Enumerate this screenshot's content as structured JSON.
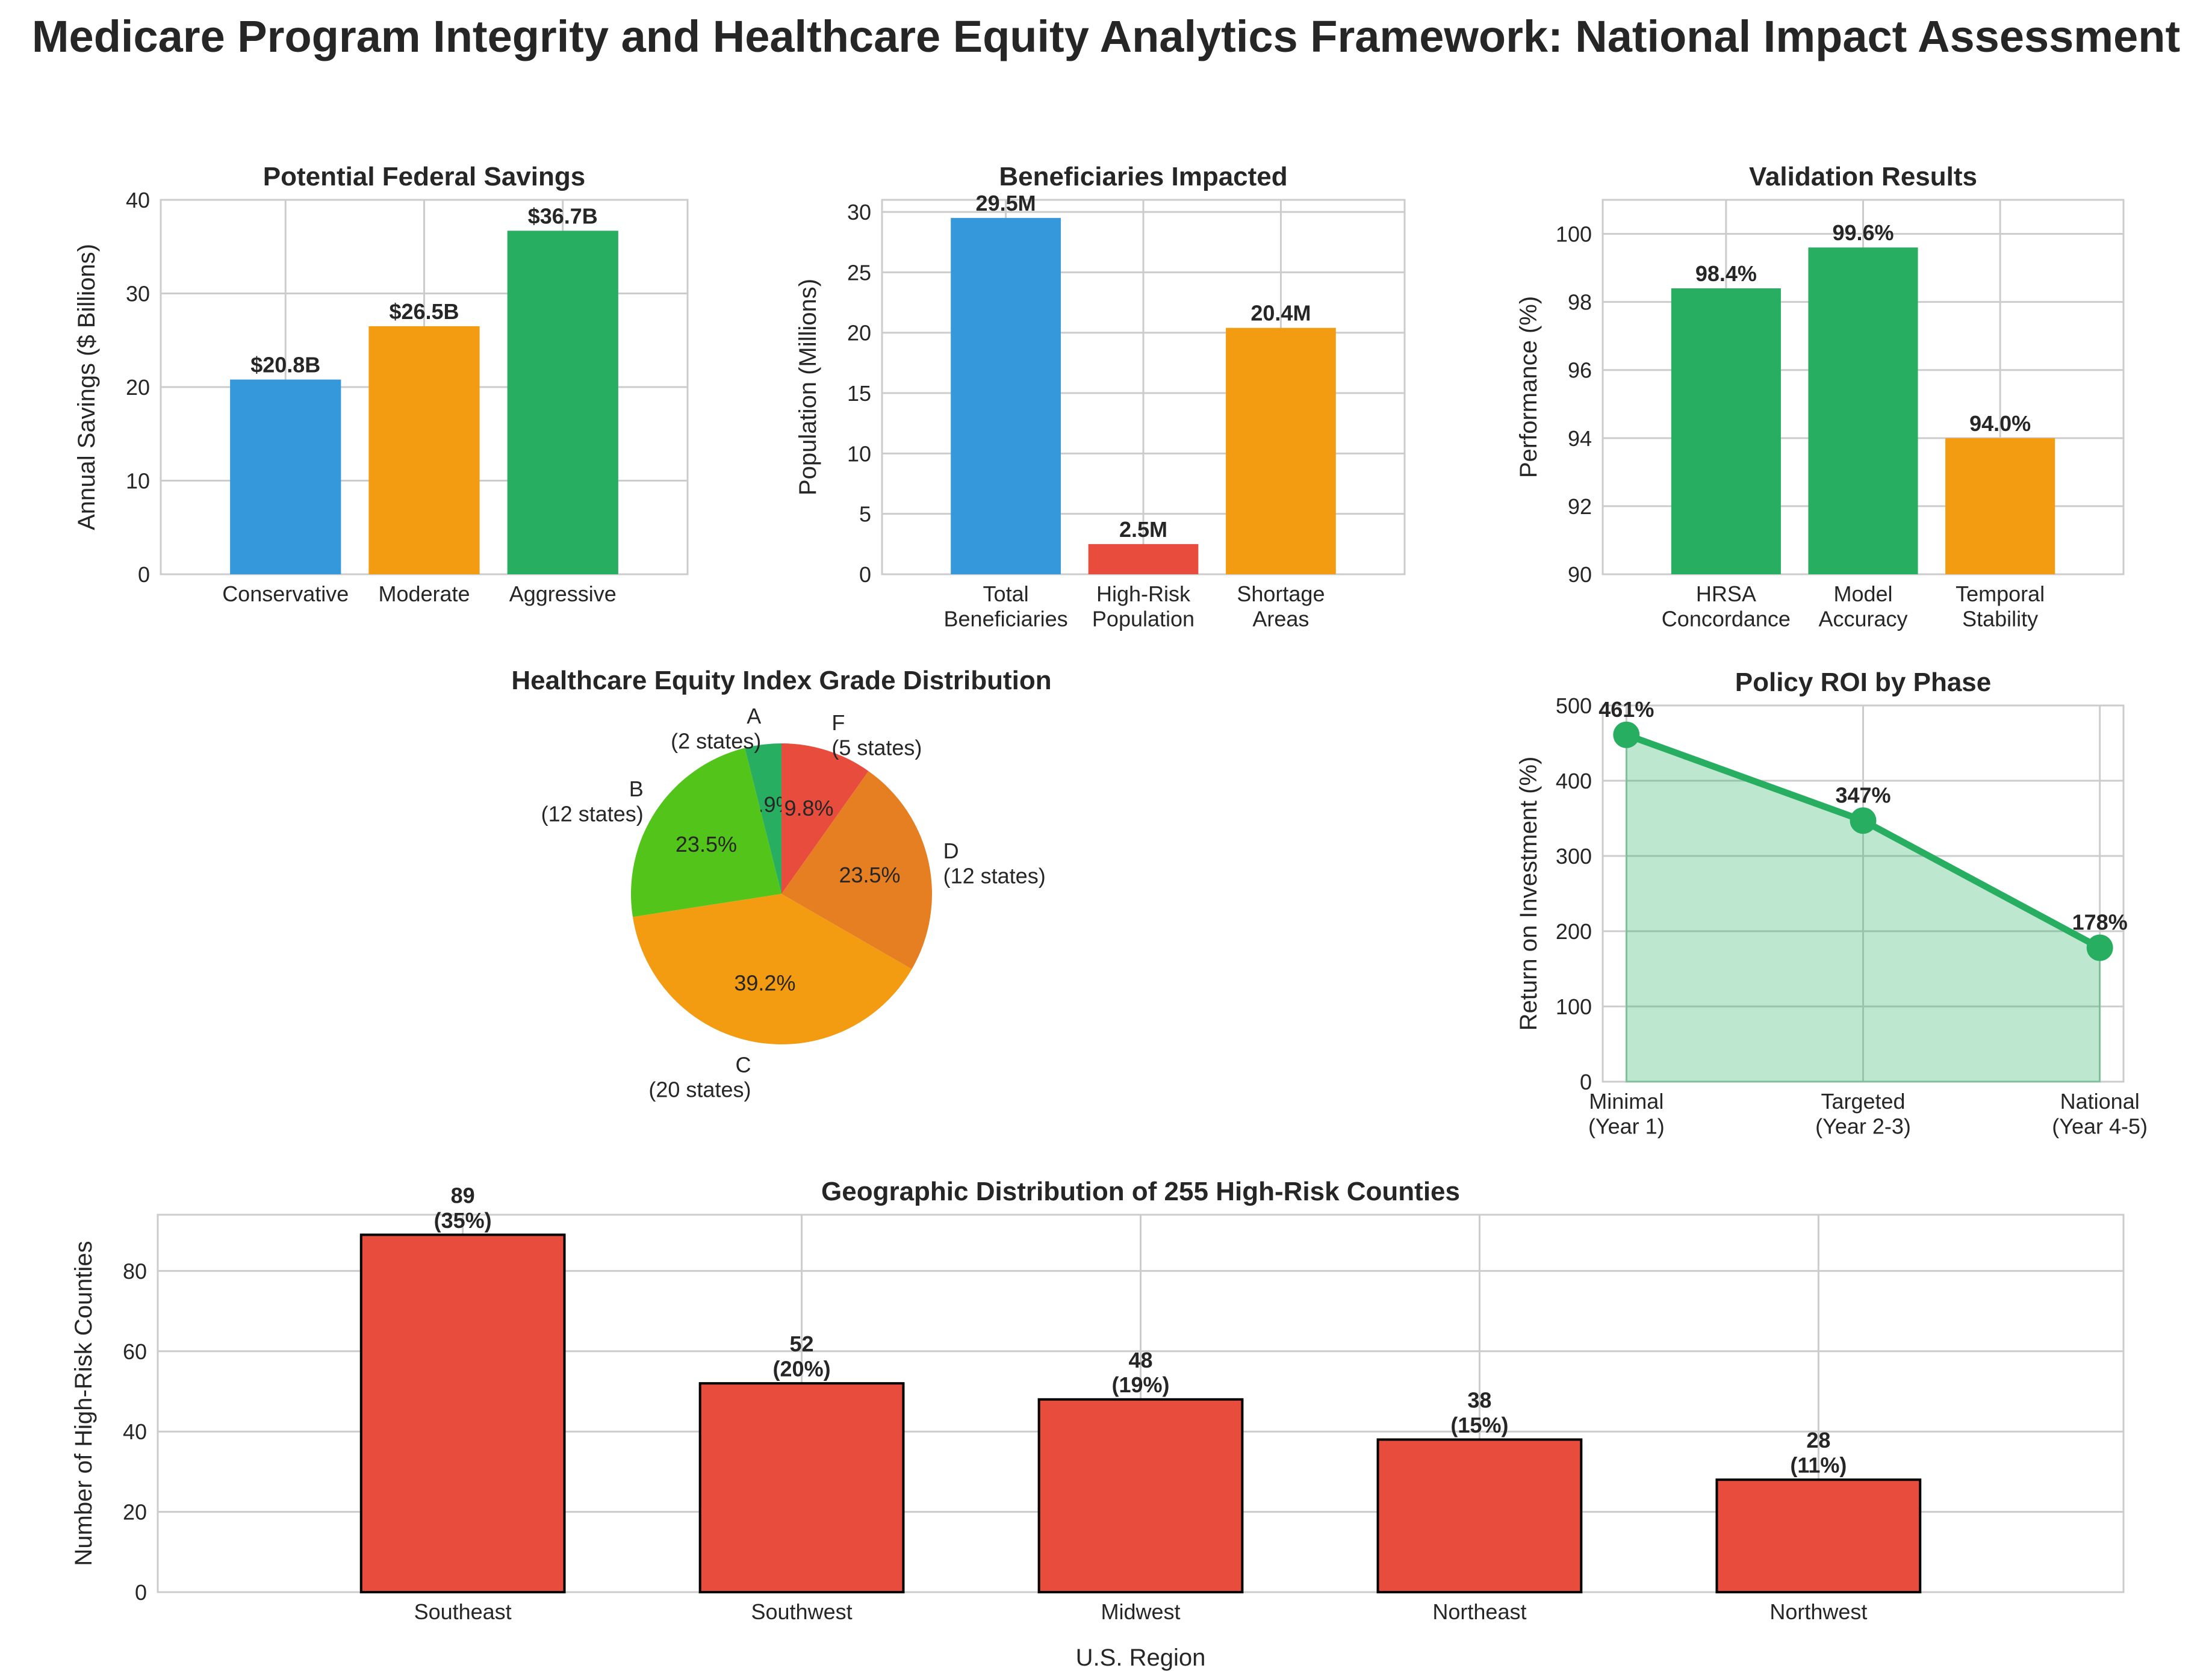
{
  "title": "Medicare Program Integrity and Healthcare Equity Analytics Framework: National Impact Assessment",
  "chart_data": [
    {
      "id": "savings",
      "type": "bar",
      "title": "Potential Federal Savings",
      "ylabel": "Annual Savings ($ Billions)",
      "xlabel": "",
      "categories": [
        "Conservative",
        "Moderate",
        "Aggressive"
      ],
      "values": [
        20.8,
        26.5,
        36.7
      ],
      "labels": [
        "$20.8B",
        "$26.5B",
        "$36.7B"
      ],
      "colors": [
        "#3498db",
        "#f39c12",
        "#27ae60"
      ],
      "ylim": [
        0,
        40
      ],
      "yticks": [
        0,
        10,
        20,
        30,
        40
      ],
      "grid": true
    },
    {
      "id": "beneficiaries",
      "type": "bar",
      "title": "Beneficiaries Impacted",
      "ylabel": "Population (Millions)",
      "xlabel": "",
      "categories": [
        "Total\nBeneficiaries",
        "High-Risk\nPopulation",
        "Shortage\nAreas"
      ],
      "values": [
        29.5,
        2.5,
        20.4
      ],
      "labels": [
        "29.5M",
        "2.5M",
        "20.4M"
      ],
      "colors": [
        "#3498db",
        "#e74c3c",
        "#f39c12"
      ],
      "ylim": [
        0,
        31
      ],
      "yticks": [
        0,
        5,
        10,
        15,
        20,
        25,
        30
      ],
      "grid": true
    },
    {
      "id": "validation",
      "type": "bar",
      "title": "Validation Results",
      "ylabel": "Performance (%)",
      "xlabel": "",
      "categories": [
        "HRSA\nConcordance",
        "Model\nAccuracy",
        "Temporal\nStability"
      ],
      "values": [
        98.4,
        99.6,
        94.0
      ],
      "labels": [
        "98.4%",
        "99.6%",
        "94.0%"
      ],
      "colors": [
        "#27ae60",
        "#27ae60",
        "#f39c12"
      ],
      "ylim": [
        90,
        101
      ],
      "yticks": [
        90,
        92,
        94,
        96,
        98,
        100
      ],
      "grid": true
    },
    {
      "id": "equity",
      "type": "pie",
      "title": "Healthcare Equity Index Grade Distribution",
      "slices": [
        {
          "label": "A\n(2 states)",
          "value": 2,
          "pct": "3.9%",
          "color": "#27ae60"
        },
        {
          "label": "B\n(12 states)",
          "value": 12,
          "pct": "23.5%",
          "color": "#52c41a"
        },
        {
          "label": "C\n(20 states)",
          "value": 20,
          "pct": "39.2%",
          "color": "#f39c12"
        },
        {
          "label": "D\n(12 states)",
          "value": 12,
          "pct": "23.5%",
          "color": "#e67e22"
        },
        {
          "label": "F\n(5 states)",
          "value": 5,
          "pct": "9.8%",
          "color": "#e74c3c"
        }
      ],
      "startangle": 90
    },
    {
      "id": "roi",
      "type": "line",
      "title": "Policy ROI by Phase",
      "ylabel": "Return on Investment (%)",
      "xlabel": "",
      "categories": [
        "Minimal\n(Year 1)",
        "Targeted\n(Year 2-3)",
        "National\n(Year 4-5)"
      ],
      "values": [
        461,
        347,
        178
      ],
      "labels": [
        "461%",
        "347%",
        "178%"
      ],
      "color": "#27ae60",
      "ylim": [
        0,
        500
      ],
      "yticks": [
        0,
        100,
        200,
        300,
        400,
        500
      ],
      "grid": true,
      "filled": true
    },
    {
      "id": "regions",
      "type": "bar",
      "title": "Geographic Distribution of 255 High-Risk Counties",
      "ylabel": "Number of High-Risk Counties",
      "xlabel": "U.S. Region",
      "categories": [
        "Southeast",
        "Southwest",
        "Midwest",
        "Northeast",
        "Northwest"
      ],
      "values": [
        89,
        52,
        48,
        38,
        28
      ],
      "labels": [
        "89\n(35%)",
        "52\n(20%)",
        "48\n(19%)",
        "38\n(15%)",
        "28\n(11%)"
      ],
      "colors": [
        "#e74c3c",
        "#e74c3c",
        "#e74c3c",
        "#e74c3c",
        "#e74c3c"
      ],
      "ylim": [
        0,
        94
      ],
      "yticks": [
        0,
        20,
        40,
        60,
        80
      ],
      "grid": true,
      "edgecolor": "#000000"
    }
  ]
}
